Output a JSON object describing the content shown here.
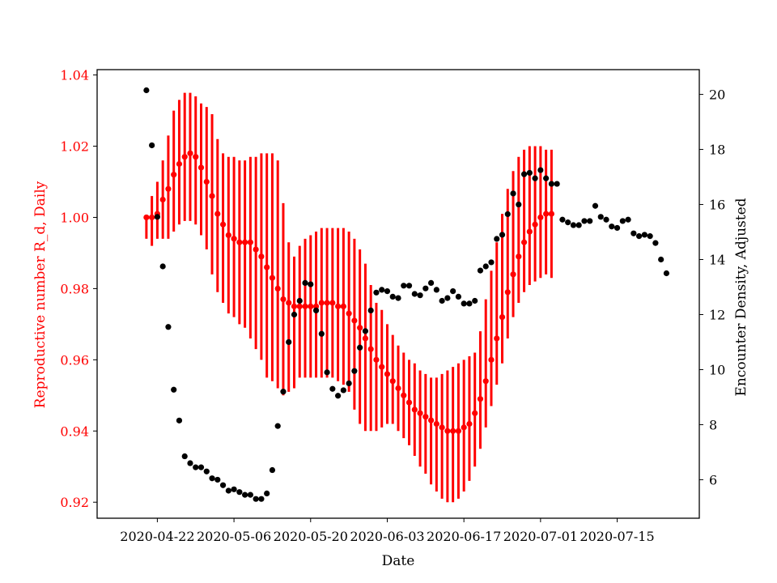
{
  "chart_data": {
    "type": "scatter",
    "xlabel": "Date",
    "ylabel_left": "Reproductive number R_d, Daily",
    "ylabel_right": "Encounter Density, Adjusted",
    "x_range": [
      "2020-04-11",
      "2020-07-30"
    ],
    "ylim_left": [
      0.9155,
      1.0415
    ],
    "ylim_right": [
      4.6,
      20.9
    ],
    "x_ticks": [
      "2020-04-22",
      "2020-05-06",
      "2020-05-20",
      "2020-06-03",
      "2020-06-17",
      "2020-07-01",
      "2020-07-15"
    ],
    "y_ticks_left": [
      "0.92",
      "0.94",
      "0.96",
      "0.98",
      "1.00",
      "1.02",
      "1.04"
    ],
    "y_ticks_right": [
      "6",
      "8",
      "10",
      "12",
      "14",
      "16",
      "18",
      "20"
    ],
    "grid": false,
    "colors": {
      "reproductive_series": "#ff0000",
      "density_series": "#000000",
      "left_axis_text": "#ff0000",
      "right_axis_text": "#000000"
    },
    "series": [
      {
        "axis": "left",
        "marker": "dot-with-error-bar",
        "color": "#ff0000",
        "start_date": "2020-04-20",
        "values": [
          1.0,
          1.0,
          1.001,
          1.005,
          1.008,
          1.012,
          1.015,
          1.017,
          1.018,
          1.017,
          1.014,
          1.01,
          1.006,
          1.001,
          0.998,
          0.995,
          0.994,
          0.993,
          0.993,
          0.993,
          0.991,
          0.989,
          0.986,
          0.983,
          0.98,
          0.977,
          0.976,
          0.975,
          0.975,
          0.975,
          0.975,
          0.975,
          0.976,
          0.976,
          0.976,
          0.975,
          0.975,
          0.973,
          0.971,
          0.969,
          0.966,
          0.963,
          0.96,
          0.958,
          0.956,
          0.954,
          0.952,
          0.95,
          0.948,
          0.946,
          0.945,
          0.944,
          0.943,
          0.942,
          0.941,
          0.94,
          0.94,
          0.94,
          0.941,
          0.942,
          0.945,
          0.949,
          0.954,
          0.96,
          0.966,
          0.972,
          0.979,
          0.984,
          0.989,
          0.993,
          0.996,
          0.998,
          1.0,
          1.001,
          1.001
        ],
        "lower": [
          0.994,
          0.992,
          0.994,
          0.994,
          0.994,
          0.996,
          0.998,
          0.999,
          0.999,
          0.998,
          0.995,
          0.991,
          0.984,
          0.979,
          0.976,
          0.973,
          0.972,
          0.97,
          0.969,
          0.966,
          0.963,
          0.96,
          0.955,
          0.954,
          0.952,
          0.95,
          0.951,
          0.952,
          0.955,
          0.955,
          0.955,
          0.955,
          0.955,
          0.955,
          0.955,
          0.954,
          0.953,
          0.951,
          0.946,
          0.942,
          0.94,
          0.94,
          0.94,
          0.941,
          0.942,
          0.942,
          0.94,
          0.938,
          0.936,
          0.933,
          0.93,
          0.928,
          0.925,
          0.923,
          0.921,
          0.92,
          0.92,
          0.921,
          0.923,
          0.926,
          0.93,
          0.935,
          0.941,
          0.947,
          0.953,
          0.959,
          0.966,
          0.972,
          0.976,
          0.979,
          0.981,
          0.982,
          0.983,
          0.984,
          0.983
        ],
        "upper": [
          1.0,
          1.006,
          1.01,
          1.016,
          1.023,
          1.03,
          1.033,
          1.035,
          1.035,
          1.034,
          1.032,
          1.031,
          1.029,
          1.022,
          1.018,
          1.017,
          1.017,
          1.016,
          1.016,
          1.017,
          1.017,
          1.018,
          1.018,
          1.018,
          1.016,
          1.004,
          0.993,
          0.989,
          0.992,
          0.994,
          0.995,
          0.996,
          0.997,
          0.997,
          0.997,
          0.997,
          0.997,
          0.996,
          0.994,
          0.991,
          0.987,
          0.981,
          0.976,
          0.974,
          0.97,
          0.967,
          0.964,
          0.962,
          0.96,
          0.959,
          0.957,
          0.956,
          0.955,
          0.955,
          0.956,
          0.957,
          0.958,
          0.959,
          0.96,
          0.961,
          0.962,
          0.968,
          0.977,
          0.985,
          0.993,
          1.001,
          1.008,
          1.013,
          1.017,
          1.019,
          1.02,
          1.02,
          1.02,
          1.019,
          1.019
        ]
      },
      {
        "axis": "right",
        "marker": "dot",
        "color": "#000000",
        "start_date": "2020-04-20",
        "values": [
          20.15,
          18.15,
          15.55,
          13.75,
          11.55,
          9.27,
          8.15,
          6.85,
          6.6,
          6.45,
          6.45,
          6.3,
          6.05,
          6.0,
          5.8,
          5.6,
          5.65,
          5.55,
          5.45,
          5.45,
          5.3,
          5.3,
          5.5,
          6.35,
          7.95,
          9.2,
          11.0,
          12.0,
          12.5,
          13.15,
          13.1,
          12.15,
          11.3,
          9.9,
          9.3,
          9.05,
          9.25,
          9.5,
          9.95,
          10.8,
          11.4,
          12.15,
          12.8,
          12.9,
          12.85,
          12.65,
          12.6,
          13.05,
          13.05,
          12.75,
          12.7,
          12.95,
          13.15,
          12.9,
          12.5,
          12.6,
          12.85,
          12.65,
          12.4,
          12.4,
          12.5,
          13.6,
          13.75,
          13.9,
          14.75,
          14.9,
          15.65,
          16.4,
          16.0,
          17.1,
          17.15,
          16.95,
          17.25,
          16.95,
          16.75,
          16.75,
          15.45,
          15.35,
          15.25,
          15.25,
          15.4,
          15.4,
          15.95,
          15.55,
          15.45,
          15.2,
          15.15,
          15.4,
          15.45,
          14.95,
          14.85,
          14.9,
          14.85,
          14.6,
          14.0,
          13.5
        ]
      }
    ]
  }
}
